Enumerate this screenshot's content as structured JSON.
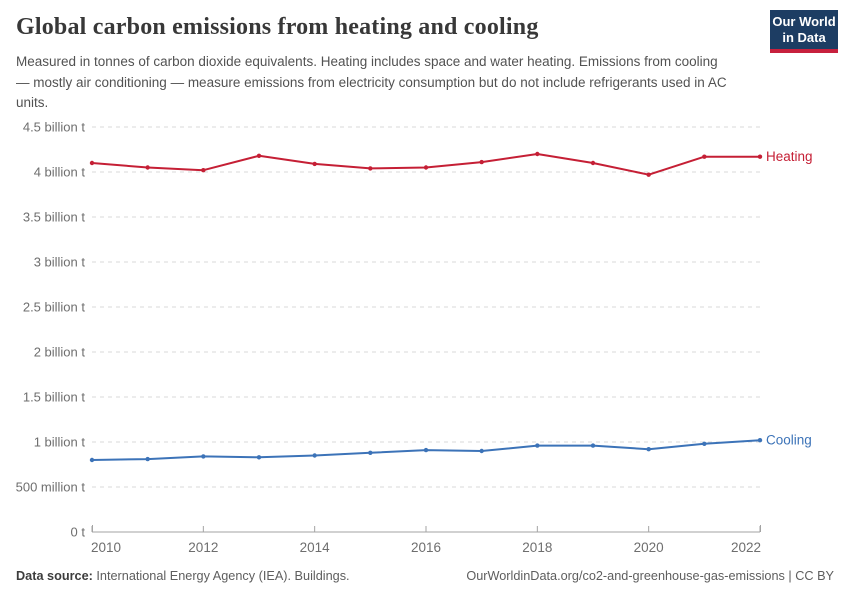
{
  "header": {
    "title": "Global carbon emissions from heating and cooling",
    "subtitle": "Measured in tonnes of carbon dioxide equivalents. Heating includes space and water heating. Emissions from cooling — mostly air conditioning — measure emissions from electricity consumption but do not include refrigerants used in AC units.",
    "logo": {
      "line1": "Our World",
      "line2": "in Data"
    }
  },
  "footer": {
    "source_label": "Data source:",
    "source_text": " International Energy Agency (IEA). Buildings.",
    "credit": "OurWorldinData.org/co2-and-greenhouse-gas-emissions | CC BY"
  },
  "colors": {
    "logo_bg": "#1d3d63",
    "logo_stripe": "#c7203d",
    "heating": "#c51f35",
    "cooling": "#3c73b8",
    "gridline": "#dadada",
    "axis": "#a3a3a3",
    "tick_label": "#6e6e6e"
  },
  "chart_data": {
    "type": "line",
    "title": "Global carbon emissions from heating and cooling",
    "xlabel": "",
    "ylabel": "tonnes of CO2 equivalents",
    "unit": "billion t",
    "grid": "horizontal dashed",
    "legend_position": "right-of-line-end",
    "xlim": [
      2010,
      2022
    ],
    "ylim": [
      0,
      4.5
    ],
    "x": [
      2010,
      2011,
      2012,
      2013,
      2014,
      2015,
      2016,
      2017,
      2018,
      2019,
      2020,
      2021,
      2022
    ],
    "x_ticks": [
      2010,
      2012,
      2014,
      2016,
      2018,
      2020,
      2022
    ],
    "y_ticks": [
      {
        "value": 4.5,
        "label": "4.5 billion t"
      },
      {
        "value": 4.0,
        "label": "4 billion t"
      },
      {
        "value": 3.5,
        "label": "3.5 billion t"
      },
      {
        "value": 3.0,
        "label": "3 billion t"
      },
      {
        "value": 2.5,
        "label": "2.5 billion t"
      },
      {
        "value": 2.0,
        "label": "2 billion t"
      },
      {
        "value": 1.5,
        "label": "1.5 billion t"
      },
      {
        "value": 1.0,
        "label": "1 billion t"
      },
      {
        "value": 0.5,
        "label": "500 million t"
      },
      {
        "value": 0,
        "label": "0 t"
      }
    ],
    "series": [
      {
        "name": "Heating",
        "color": "#c51f35",
        "values": [
          4.1,
          4.05,
          4.02,
          4.18,
          4.09,
          4.04,
          4.05,
          4.11,
          4.2,
          4.1,
          3.97,
          4.17,
          4.17
        ]
      },
      {
        "name": "Cooling",
        "color": "#3c73b8",
        "values": [
          0.8,
          0.81,
          0.84,
          0.83,
          0.85,
          0.88,
          0.91,
          0.9,
          0.96,
          0.96,
          0.92,
          0.98,
          1.02
        ]
      }
    ]
  }
}
